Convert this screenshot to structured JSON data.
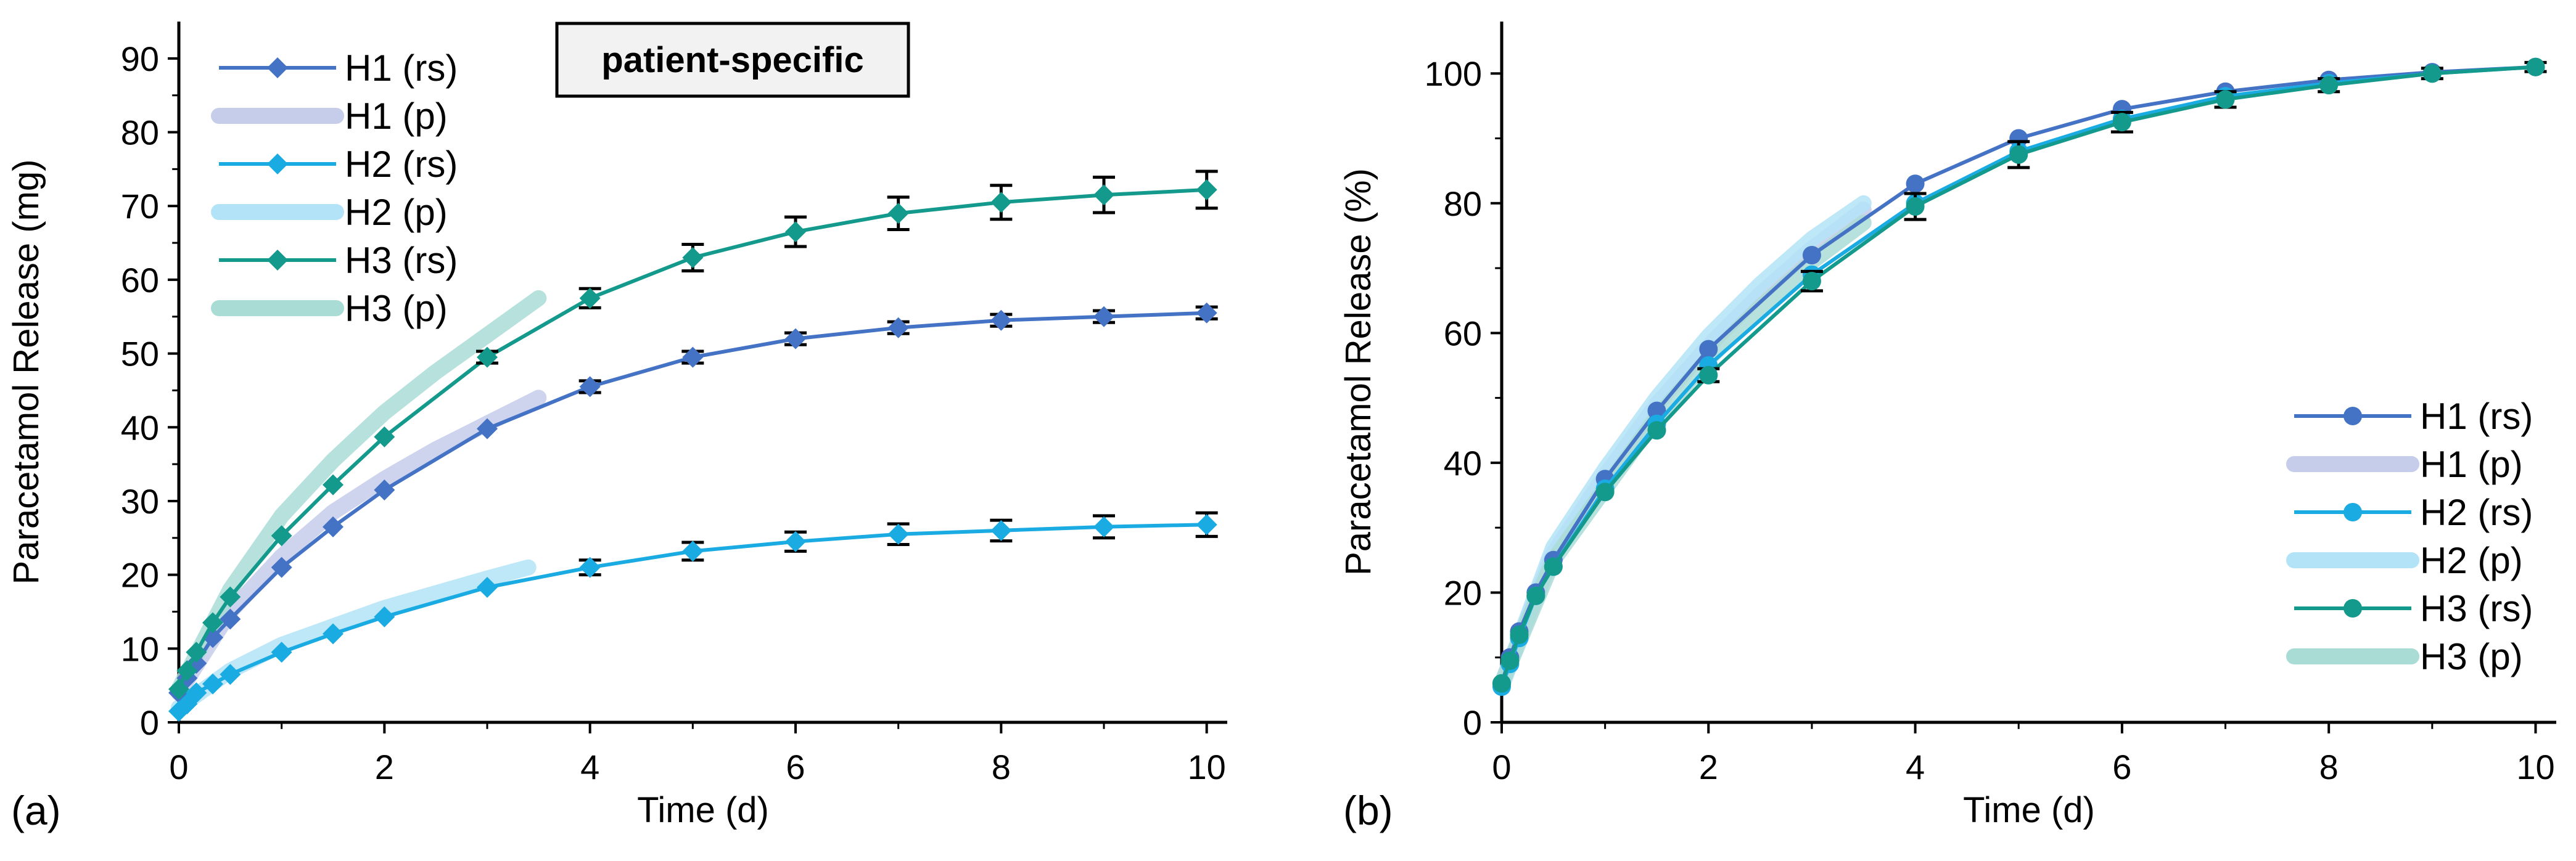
{
  "panels": [
    {
      "label": "(a)",
      "annotation": "patient-specific",
      "chart_data": {
        "type": "line",
        "xlabel": "Time (d)",
        "ylabel": "Paracetamol Release (mg)",
        "xlim": [
          0,
          10.2
        ],
        "ylim": [
          0,
          95
        ],
        "xticks": [
          0,
          2,
          4,
          6,
          8,
          10
        ],
        "yticks": [
          0,
          10,
          20,
          30,
          40,
          50,
          60,
          70,
          80,
          90
        ],
        "legend_position": "top-left",
        "series": [
          {
            "name": "H1 (rs)",
            "kind": "rs",
            "color": "#4472C4",
            "marker": "diamond",
            "x": [
              0,
              0.08,
              0.17,
              0.33,
              0.5,
              1,
              1.5,
              2,
              3,
              4,
              5,
              6,
              7,
              8,
              9,
              10
            ],
            "y": [
              4,
              6,
              8,
              11.5,
              14,
              21,
              26.5,
              31.5,
              39.8,
              45.5,
              49.5,
              52,
              53.5,
              54.5,
              55,
              55.5
            ],
            "err": [
              0,
              0,
              0,
              0,
              0,
              0,
              0,
              0,
              0,
              0.8,
              0.8,
              0.8,
              0.8,
              0.8,
              0.8,
              0.8
            ]
          },
          {
            "name": "H1 (p)",
            "kind": "p",
            "color": "#C5CDEA",
            "x": [
              0,
              0.5,
              1,
              1.5,
              2,
              2.5,
              3,
              3.5
            ],
            "y": [
              4,
              15,
              22.5,
              28.5,
              33,
              37,
              40.5,
              44
            ]
          },
          {
            "name": "H2 (rs)",
            "kind": "rs",
            "color": "#1AABE3",
            "marker": "diamond",
            "x": [
              0,
              0.08,
              0.17,
              0.33,
              0.5,
              1,
              1.5,
              2,
              3,
              4,
              5,
              6,
              7,
              8,
              9,
              10
            ],
            "y": [
              1.5,
              2.5,
              4,
              5.2,
              6.5,
              9.5,
              12,
              14.3,
              18.3,
              21,
              23.2,
              24.5,
              25.5,
              26,
              26.5,
              26.8
            ],
            "err": [
              0,
              0,
              0,
              0,
              0,
              0,
              0,
              0,
              0,
              1,
              1.2,
              1.3,
              1.4,
              1.4,
              1.5,
              1.6
            ]
          },
          {
            "name": "H2 (p)",
            "kind": "p",
            "color": "#B3E3F7",
            "x": [
              0,
              0.5,
              1,
              1.5,
              2,
              2.5,
              3,
              3.4
            ],
            "y": [
              2,
              7,
              10.5,
              13,
              15.5,
              17.5,
              19.5,
              21
            ]
          },
          {
            "name": "H3 (rs)",
            "kind": "rs",
            "color": "#149A8C",
            "marker": "diamond",
            "x": [
              0,
              0.08,
              0.17,
              0.33,
              0.5,
              1,
              1.5,
              2,
              3,
              4,
              5,
              6,
              7,
              8,
              9,
              10
            ],
            "y": [
              4.5,
              7,
              9.5,
              13.5,
              17,
              25.3,
              32.2,
              38.7,
              49.5,
              57.5,
              63,
              66.5,
              69,
              70.5,
              71.5,
              72.2
            ],
            "err": [
              0,
              0,
              0,
              0,
              0,
              0,
              0,
              0,
              0.8,
              1.3,
              1.8,
              2,
              2.2,
              2.3,
              2.4,
              2.5
            ]
          },
          {
            "name": "H3 (p)",
            "kind": "p",
            "color": "#AADCD6",
            "x": [
              0,
              0.5,
              1,
              1.5,
              2,
              2.5,
              3,
              3.5
            ],
            "y": [
              4.5,
              18,
              28,
              35.5,
              42,
              47.5,
              52.5,
              57.5
            ]
          }
        ]
      }
    },
    {
      "label": "(b)",
      "chart_data": {
        "type": "line",
        "xlabel": "Time (d)",
        "ylabel": "Paracetamol Release (%)",
        "xlim": [
          0,
          10.2
        ],
        "ylim": [
          0,
          108
        ],
        "xticks": [
          0,
          2,
          4,
          6,
          8,
          10
        ],
        "yticks": [
          0,
          20,
          40,
          60,
          80,
          100
        ],
        "legend_position": "bottom-right",
        "series": [
          {
            "name": "H1 (rs)",
            "kind": "rs",
            "color": "#4472C4",
            "marker": "circle",
            "x": [
              0,
              0.08,
              0.17,
              0.33,
              0.5,
              1,
              1.5,
              2,
              3,
              4,
              5,
              6,
              7,
              8,
              9,
              10
            ],
            "y": [
              6,
              10,
              14,
              20,
              25,
              37.5,
              48,
              57.5,
              72,
              83,
              90,
              94.5,
              97.2,
              99,
              100.2,
              101
            ],
            "err": [
              0,
              0,
              0,
              0,
              0,
              0,
              0,
              0,
              0,
              0,
              0,
              0,
              0,
              0,
              0,
              0
            ]
          },
          {
            "name": "H1 (p)",
            "kind": "p",
            "color": "#C5CDEA",
            "x": [
              0,
              0.5,
              1,
              1.5,
              2,
              2.5,
              3,
              3.5
            ],
            "y": [
              6,
              26,
              38,
              49,
              58,
              66,
              73,
              79
            ]
          },
          {
            "name": "H2 (rs)",
            "kind": "rs",
            "color": "#1AABE3",
            "marker": "circle",
            "x": [
              0,
              0.08,
              0.17,
              0.33,
              0.5,
              1,
              1.5,
              2,
              3,
              4,
              5,
              6,
              7,
              8,
              9,
              10
            ],
            "y": [
              5.5,
              9,
              13,
              19.5,
              24,
              36,
              46,
              55,
              69,
              80,
              88,
              93,
              96.5,
              98.5,
              100,
              101
            ],
            "err": [
              0,
              0,
              0,
              0,
              0,
              0,
              0,
              0,
              0,
              0,
              0,
              0,
              0,
              0,
              0,
              0
            ]
          },
          {
            "name": "H2 (p)",
            "kind": "p",
            "color": "#B3E3F7",
            "x": [
              0,
              0.5,
              1,
              1.5,
              2,
              2.5,
              3,
              3.5
            ],
            "y": [
              5.5,
              27,
              39,
              50,
              59.5,
              67.5,
              74.5,
              80
            ]
          },
          {
            "name": "H3 (rs)",
            "kind": "rs",
            "color": "#149A8C",
            "marker": "circle",
            "x": [
              0,
              0.08,
              0.17,
              0.33,
              0.5,
              1,
              1.5,
              2,
              3,
              4,
              5,
              6,
              7,
              8,
              9,
              10
            ],
            "y": [
              6,
              9.5,
              13.5,
              19.5,
              24,
              35.5,
              45,
              53.5,
              68,
              79.5,
              87.5,
              92.5,
              96,
              98.2,
              100,
              101
            ],
            "err": [
              0,
              0,
              0,
              0,
              0,
              0,
              0,
              1,
              1.5,
              2,
              2,
              1.5,
              1.2,
              1,
              0.8,
              0.7
            ]
          },
          {
            "name": "H3 (p)",
            "kind": "p",
            "color": "#AADCD6",
            "x": [
              0,
              0.5,
              1,
              1.5,
              2,
              2.5,
              3,
              3.5
            ],
            "y": [
              6,
              25,
              36,
              47,
              56,
              64,
              71,
              77
            ]
          }
        ]
      }
    }
  ]
}
